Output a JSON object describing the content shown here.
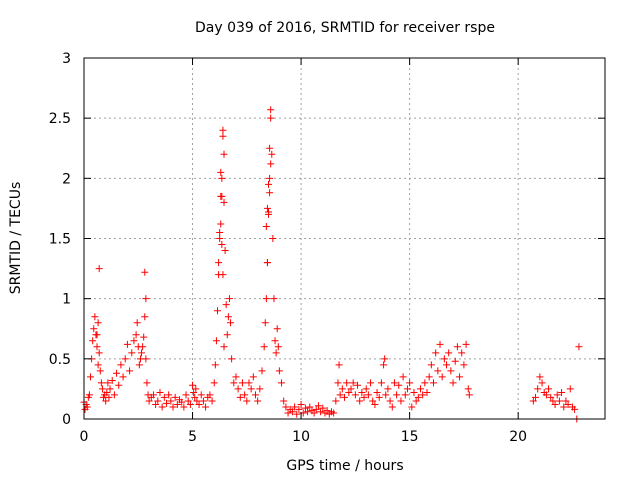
{
  "chart_data": {
    "type": "scatter",
    "title": "Day 039 of 2016, SRMTID for receiver rspe",
    "xlabel": "GPS time / hours",
    "ylabel": "SRMTID / TECUs",
    "xlim": [
      0,
      24
    ],
    "ylim": [
      0,
      3
    ],
    "xticks": [
      0,
      5,
      10,
      15,
      20
    ],
    "xtick_labels": [
      "0",
      "5",
      "10",
      "15",
      "20"
    ],
    "yticks": [
      0,
      0.5,
      1,
      1.5,
      2,
      2.5,
      3
    ],
    "ytick_labels": [
      "0",
      "0.5",
      "1",
      "1.5",
      "2",
      "2.5",
      "3"
    ],
    "grid": true,
    "marker": "+",
    "color": "#ff0000",
    "series": [
      {
        "name": "SRMTID",
        "x": [
          0.0,
          0.05,
          0.1,
          0.15,
          0.2,
          0.25,
          0.3,
          0.35,
          0.4,
          0.45,
          0.5,
          0.55,
          0.6,
          0.65,
          0.7,
          0.75,
          0.8,
          0.85,
          0.9,
          0.95,
          1.0,
          1.05,
          1.1,
          1.15,
          1.2,
          1.3,
          1.4,
          1.5,
          1.6,
          1.7,
          1.8,
          1.9,
          2.0,
          2.1,
          2.2,
          2.3,
          2.4,
          2.45,
          2.5,
          2.55,
          2.6,
          2.65,
          2.7,
          2.75,
          2.8,
          2.85,
          2.9,
          2.95,
          3.0,
          3.1,
          3.2,
          3.3,
          3.4,
          3.5,
          3.6,
          3.7,
          3.8,
          3.9,
          4.0,
          4.1,
          4.2,
          4.3,
          4.4,
          4.5,
          4.6,
          4.7,
          4.8,
          4.9,
          5.0,
          5.05,
          5.1,
          5.15,
          5.2,
          5.3,
          5.4,
          5.5,
          5.6,
          5.7,
          5.8,
          5.9,
          6.0,
          6.05,
          6.1,
          6.15,
          6.2,
          6.25,
          6.3,
          6.35,
          6.4,
          6.45,
          6.5,
          6.55,
          6.6,
          6.65,
          6.7,
          6.75,
          6.8,
          6.9,
          7.0,
          7.1,
          7.2,
          7.3,
          7.4,
          7.5,
          7.6,
          7.7,
          7.8,
          7.9,
          8.0,
          8.1,
          8.2,
          8.3,
          8.35,
          8.4,
          8.45,
          8.5,
          8.55,
          8.6,
          8.65,
          8.7,
          8.75,
          8.8,
          8.85,
          8.9,
          8.95,
          9.0,
          9.1,
          9.2,
          9.3,
          9.4,
          9.5,
          9.6,
          9.7,
          9.8,
          9.9,
          10.0,
          10.1,
          10.2,
          10.3,
          10.4,
          10.5,
          10.6,
          10.7,
          10.8,
          10.9,
          11.0,
          11.1,
          11.2,
          11.3,
          11.4,
          11.5,
          11.6,
          11.7,
          11.75,
          11.8,
          11.9,
          12.0,
          12.1,
          12.2,
          12.3,
          12.4,
          12.5,
          12.6,
          12.7,
          12.8,
          12.9,
          13.0,
          13.1,
          13.2,
          13.3,
          13.4,
          13.5,
          13.6,
          13.7,
          13.8,
          13.85,
          13.9,
          14.0,
          14.1,
          14.2,
          14.3,
          14.4,
          14.5,
          14.6,
          14.7,
          14.8,
          14.9,
          15.0,
          15.1,
          15.2,
          15.3,
          15.4,
          15.5,
          15.6,
          15.7,
          15.8,
          15.9,
          16.0,
          16.1,
          16.2,
          16.3,
          16.4,
          16.5,
          16.6,
          16.7,
          16.8,
          16.9,
          17.0,
          17.1,
          17.2,
          17.3,
          17.4,
          17.5,
          17.6,
          17.7,
          17.75,
          20.7,
          20.8,
          20.9,
          21.0,
          21.1,
          21.2,
          21.3,
          21.4,
          21.5,
          21.6,
          21.7,
          21.8,
          21.9,
          22.0,
          22.1,
          22.2,
          22.3,
          22.4,
          22.5,
          22.6,
          22.7,
          22.8,
          0.6,
          0.65,
          0.7,
          2.8,
          2.85,
          6.2,
          6.25,
          6.3,
          6.35,
          6.4,
          6.45,
          6.3,
          6.35,
          6.4,
          6.45,
          8.4,
          8.45,
          8.5,
          8.55,
          8.6,
          8.6,
          8.55,
          8.5,
          8.45
        ],
        "y": [
          0.14,
          0.08,
          0.12,
          0.1,
          0.18,
          0.2,
          0.35,
          0.5,
          0.65,
          0.75,
          0.85,
          0.7,
          0.6,
          0.45,
          0.55,
          0.4,
          0.3,
          0.25,
          0.18,
          0.2,
          0.15,
          0.22,
          0.3,
          0.18,
          0.25,
          0.32,
          0.2,
          0.38,
          0.28,
          0.45,
          0.35,
          0.5,
          0.62,
          0.4,
          0.55,
          0.65,
          0.7,
          0.8,
          0.6,
          0.45,
          0.5,
          0.55,
          0.6,
          0.68,
          0.85,
          0.5,
          0.3,
          0.2,
          0.15,
          0.18,
          0.2,
          0.12,
          0.15,
          0.22,
          0.1,
          0.18,
          0.13,
          0.2,
          0.15,
          0.1,
          0.18,
          0.12,
          0.16,
          0.14,
          0.1,
          0.2,
          0.15,
          0.12,
          0.28,
          0.22,
          0.18,
          0.25,
          0.15,
          0.12,
          0.2,
          0.15,
          0.1,
          0.18,
          0.2,
          0.15,
          0.3,
          0.45,
          0.65,
          0.9,
          1.2,
          1.5,
          1.85,
          2.0,
          2.35,
          1.8,
          1.4,
          0.95,
          0.7,
          0.85,
          1.0,
          0.8,
          0.5,
          0.3,
          0.35,
          0.25,
          0.18,
          0.3,
          0.2,
          0.15,
          0.3,
          0.25,
          0.35,
          0.2,
          0.15,
          0.25,
          0.4,
          0.6,
          0.8,
          1.0,
          1.3,
          1.7,
          2.0,
          2.5,
          2.2,
          1.5,
          1.0,
          0.65,
          0.55,
          0.75,
          0.6,
          0.4,
          0.3,
          0.15,
          0.1,
          0.05,
          0.08,
          0.06,
          0.1,
          0.04,
          0.08,
          0.12,
          0.05,
          0.09,
          0.06,
          0.1,
          0.07,
          0.05,
          0.08,
          0.11,
          0.06,
          0.09,
          0.05,
          0.07,
          0.04,
          0.06,
          0.05,
          0.15,
          0.3,
          0.45,
          0.2,
          0.25,
          0.18,
          0.3,
          0.22,
          0.25,
          0.3,
          0.2,
          0.28,
          0.15,
          0.22,
          0.18,
          0.25,
          0.2,
          0.3,
          0.15,
          0.12,
          0.22,
          0.18,
          0.3,
          0.45,
          0.5,
          0.2,
          0.25,
          0.15,
          0.1,
          0.3,
          0.2,
          0.28,
          0.15,
          0.35,
          0.2,
          0.25,
          0.3,
          0.1,
          0.22,
          0.15,
          0.18,
          0.25,
          0.2,
          0.3,
          0.22,
          0.35,
          0.45,
          0.3,
          0.55,
          0.4,
          0.62,
          0.35,
          0.5,
          0.45,
          0.55,
          0.4,
          0.3,
          0.48,
          0.6,
          0.35,
          0.55,
          0.45,
          0.62,
          0.25,
          0.2,
          0.15,
          0.18,
          0.25,
          0.35,
          0.3,
          0.22,
          0.2,
          0.25,
          0.18,
          0.15,
          0.12,
          0.2,
          0.15,
          0.22,
          0.1,
          0.15,
          0.12,
          0.25,
          0.1,
          0.08,
          0.0,
          0.6,
          0.7,
          0.8,
          1.25,
          1.22,
          1.0,
          1.3,
          1.55,
          1.62,
          1.85,
          2.4,
          2.2,
          2.05,
          1.45,
          1.2,
          0.6,
          1.6,
          1.75,
          1.95,
          2.25,
          2.57,
          2.12,
          1.88,
          1.72,
          1.3
        ]
      }
    ]
  }
}
